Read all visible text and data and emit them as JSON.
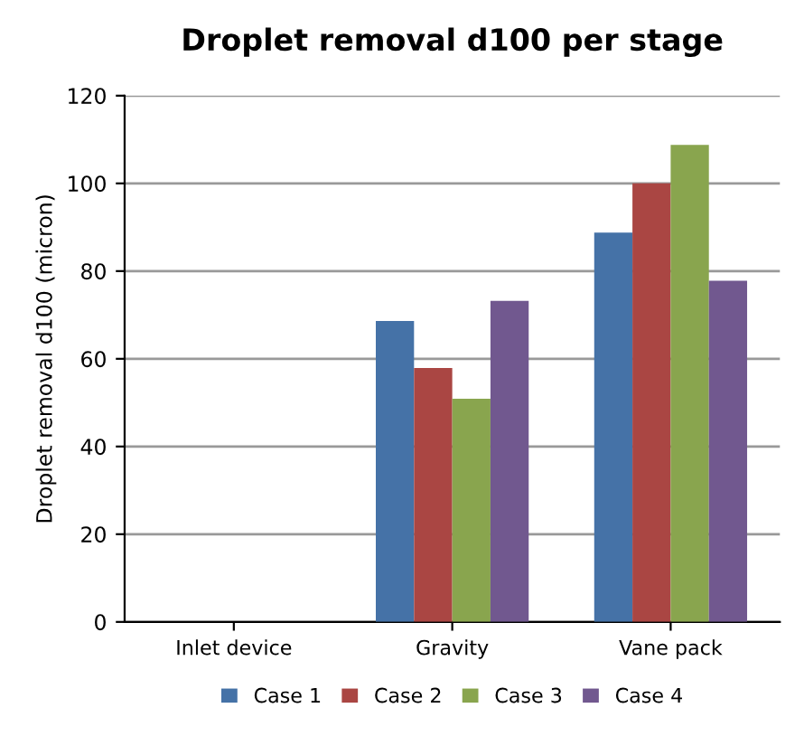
{
  "chart_data": {
    "type": "bar",
    "title": "Droplet removal d100 per stage",
    "ylabel": "Droplet removal d100 (micron)",
    "categories": [
      "Inlet device",
      "Gravity",
      "Vane pack"
    ],
    "series": [
      {
        "name": "Case 1",
        "color": "#4572a7",
        "values": [
          0,
          68.6,
          88.8
        ]
      },
      {
        "name": "Case 2",
        "color": "#aa4643",
        "values": [
          0,
          57.9,
          100
        ]
      },
      {
        "name": "Case 3",
        "color": "#89a54e",
        "values": [
          0,
          50.9,
          108.8
        ]
      },
      {
        "name": "Case 4",
        "color": "#71588f",
        "values": [
          0,
          73.2,
          77.8
        ]
      }
    ],
    "ylim": [
      0,
      120
    ],
    "yticks": [
      0,
      20,
      40,
      60,
      80,
      100,
      120
    ],
    "grid": "y",
    "legend": "bottom"
  }
}
